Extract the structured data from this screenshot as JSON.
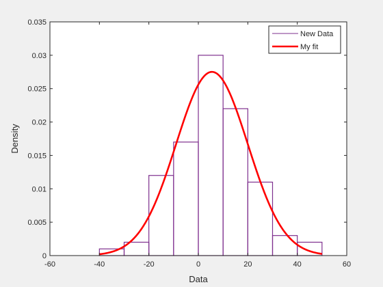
{
  "chart_data": {
    "type": "histogram",
    "xlabel": "Data",
    "ylabel": "Density",
    "xlim": [
      -60,
      60
    ],
    "ylim": [
      0,
      0.035
    ],
    "xticks": [
      -60,
      -40,
      -20,
      0,
      20,
      40,
      60
    ],
    "yticks": [
      0,
      0.005,
      0.01,
      0.015,
      0.02,
      0.025,
      0.03,
      0.035
    ],
    "xtick_labels": [
      "-60",
      "-40",
      "-20",
      "0",
      "20",
      "40",
      "60"
    ],
    "ytick_labels": [
      "0",
      "0.005",
      "0.01",
      "0.015",
      "0.02",
      "0.025",
      "0.03",
      "0.035"
    ],
    "legend_position": "top-right",
    "grid": false,
    "histogram": {
      "name": "New Data",
      "color": "#7e2f8e",
      "bin_edges": [
        -40,
        -30,
        -20,
        -10,
        0,
        10,
        20,
        30,
        40,
        50
      ],
      "values": [
        0.001,
        0.002,
        0.012,
        0.017,
        0.03,
        0.022,
        0.011,
        0.003,
        0.002
      ]
    },
    "fit": {
      "name": "My fit",
      "color": "#ff0000",
      "distribution": "normal",
      "mean": 5.5,
      "std": 14.5,
      "x_range": [
        -40,
        50
      ]
    }
  }
}
